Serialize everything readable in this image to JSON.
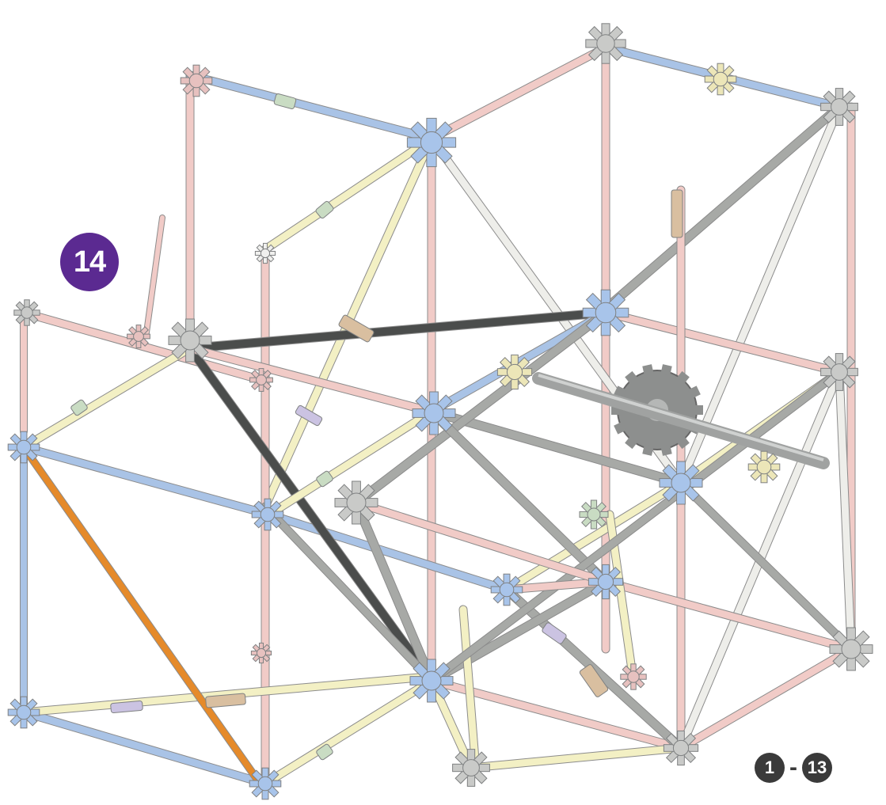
{
  "step": {
    "number": "14"
  },
  "range": {
    "from": "1",
    "separator": "-",
    "to": "13"
  },
  "colors": {
    "badge": "#5b2a91",
    "range": "#3a3a3a",
    "rod_pink": "#f1cbc7",
    "rod_blue": "#a9c3e6",
    "rod_yellow": "#f3f0c4",
    "rod_white": "#eeeeea",
    "rod_grey": "#a7a9a6",
    "rod_dark": "#4b4d4c",
    "rod_orange": "#e58a2a",
    "conn_blue": "#a8c4ea",
    "conn_grey": "#c9cac8",
    "conn_pink": "#e7c1bf",
    "conn_tan": "#d9bfa0",
    "conn_cream": "#ece6b8",
    "conn_green": "#c9dcc3",
    "conn_lilac": "#cbc3e2"
  },
  "icons": [
    "k-nex-connector-icon",
    "gear-icon"
  ]
}
